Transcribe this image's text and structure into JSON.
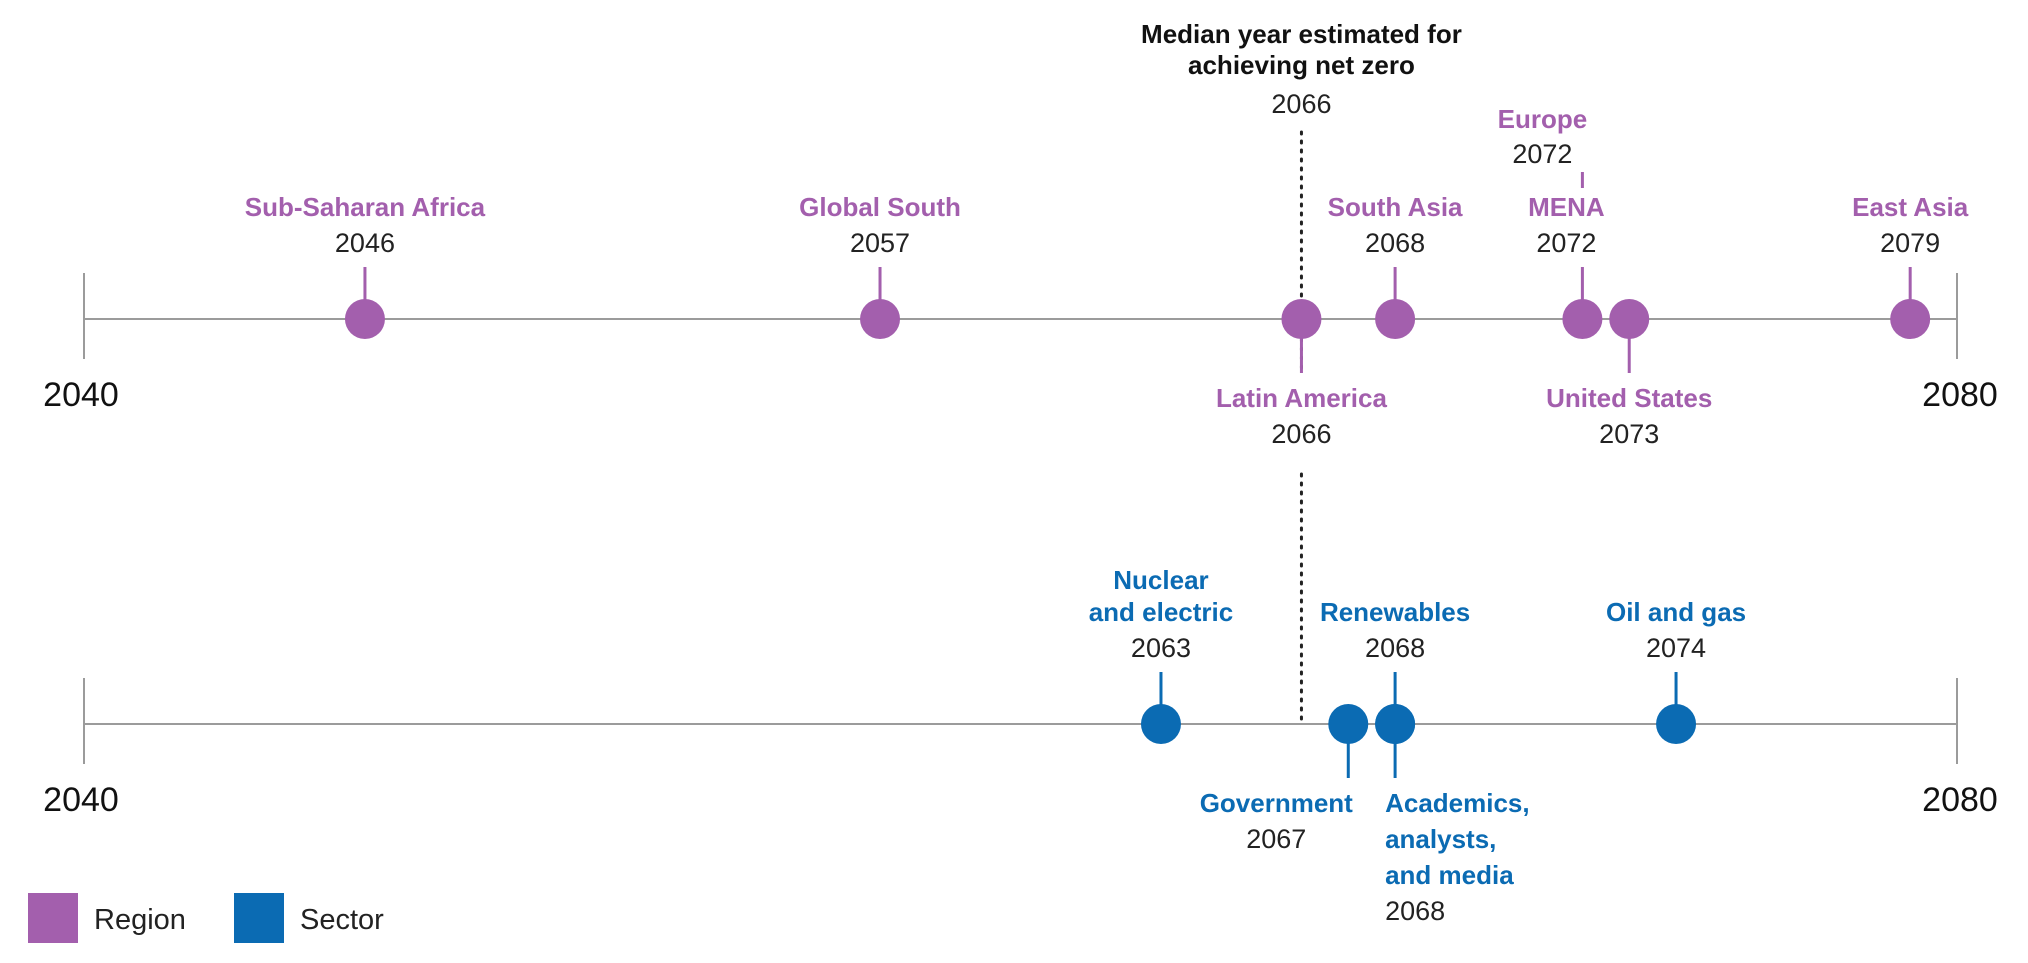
{
  "chart_data": {
    "type": "scatter",
    "xlim": [
      2040,
      2080
    ],
    "axis_tick_labels": [
      "2040",
      "2080"
    ],
    "median": {
      "label_lines": [
        "Median year estimated for",
        "achieving net zero"
      ],
      "year": 2066
    },
    "series": [
      {
        "name": "Region",
        "color": "#a35fad",
        "points": [
          {
            "label": "Sub-Saharan Africa",
            "year": 2046
          },
          {
            "label": "Global South",
            "year": 2057
          },
          {
            "label": "Latin America",
            "year": 2066
          },
          {
            "label": "South Asia",
            "year": 2068
          },
          {
            "label": "Europe",
            "year": 2072
          },
          {
            "label": "MENA",
            "year": 2072
          },
          {
            "label": "United States",
            "year": 2073
          },
          {
            "label": "East Asia",
            "year": 2079
          }
        ]
      },
      {
        "name": "Sector",
        "color": "#0b6bb3",
        "points": [
          {
            "label": "Nuclear and electric",
            "year": 2063
          },
          {
            "label": "Government",
            "year": 2067
          },
          {
            "label": "Renewables",
            "year": 2068
          },
          {
            "label": "Academics, analysts, and media",
            "year": 2068
          },
          {
            "label": "Oil and gas",
            "year": 2074
          }
        ]
      }
    ],
    "legend": [
      "Region",
      "Sector"
    ],
    "legend_placement": "bottom-left",
    "grid": false
  }
}
